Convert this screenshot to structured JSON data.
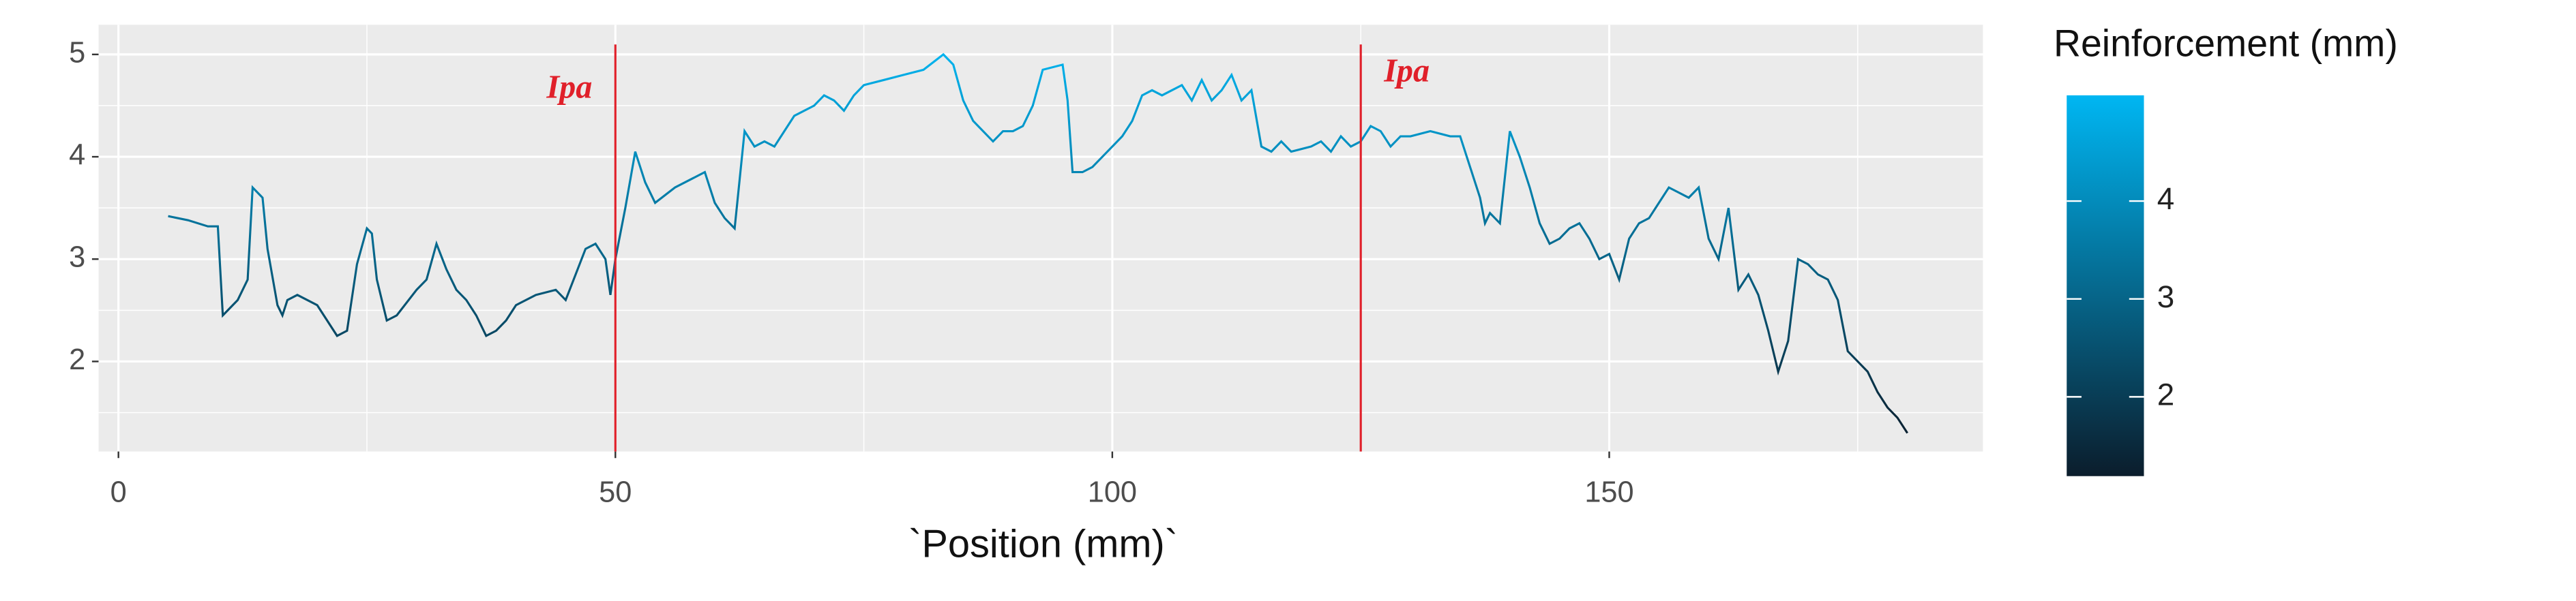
{
  "chart_data": {
    "type": "line",
    "x_label": "`Position (mm)`",
    "x": [
      5,
      7,
      9,
      10,
      10.5,
      11,
      12,
      13,
      13.5,
      14.5,
      15,
      16,
      16.5,
      17,
      18,
      20,
      21,
      22,
      23,
      24,
      25,
      25.5,
      26,
      27,
      28,
      30,
      31,
      32,
      33,
      34,
      35,
      36,
      37,
      38,
      39,
      40,
      42,
      44,
      45,
      46,
      47,
      48,
      49,
      49.5,
      50,
      51,
      52,
      53,
      54,
      56,
      58,
      59,
      60,
      61,
      62,
      63,
      64,
      65,
      66,
      67,
      68,
      70,
      71,
      72,
      73,
      74,
      75,
      77,
      79,
      81,
      83,
      84,
      85,
      86,
      88,
      89,
      90,
      91,
      92,
      93,
      95,
      95.5,
      96,
      97,
      98,
      99,
      100,
      101,
      102,
      103,
      104,
      105,
      106,
      107,
      108,
      109,
      110,
      111,
      112,
      113,
      114,
      115,
      116,
      117,
      118,
      120,
      121,
      122,
      123,
      124,
      125,
      126,
      127,
      128,
      129,
      130,
      132,
      134,
      135,
      136,
      137,
      137.5,
      138,
      139,
      140,
      141,
      142,
      143,
      144,
      145,
      146,
      147,
      148,
      149,
      150,
      151,
      152,
      153,
      154,
      155,
      156,
      157,
      158,
      159,
      160,
      161,
      162,
      163,
      164,
      165,
      166,
      167,
      168,
      169,
      170,
      171,
      172,
      173,
      174,
      175,
      176,
      177,
      178,
      179,
      180
    ],
    "series": [
      {
        "values": [
          3.42,
          3.38,
          3.32,
          3.32,
          2.45,
          2.5,
          2.6,
          2.8,
          3.7,
          3.6,
          3.1,
          2.55,
          2.45,
          2.6,
          2.65,
          2.55,
          2.4,
          2.25,
          2.3,
          2.95,
          3.3,
          3.25,
          2.8,
          2.4,
          2.45,
          2.7,
          2.8,
          3.15,
          2.9,
          2.7,
          2.6,
          2.45,
          2.25,
          2.3,
          2.4,
          2.55,
          2.65,
          2.7,
          2.6,
          2.85,
          3.1,
          3.15,
          3.0,
          2.65,
          3.0,
          3.5,
          4.05,
          3.75,
          3.55,
          3.7,
          3.8,
          3.85,
          3.55,
          3.4,
          3.3,
          4.25,
          4.1,
          4.15,
          4.1,
          4.25,
          4.4,
          4.5,
          4.6,
          4.55,
          4.45,
          4.6,
          4.7,
          4.75,
          4.8,
          4.85,
          5.0,
          4.9,
          4.55,
          4.35,
          4.15,
          4.25,
          4.25,
          4.3,
          4.5,
          4.85,
          4.9,
          4.55,
          3.85,
          3.85,
          3.9,
          4.0,
          4.1,
          4.2,
          4.35,
          4.6,
          4.65,
          4.6,
          4.65,
          4.7,
          4.55,
          4.75,
          4.55,
          4.65,
          4.8,
          4.55,
          4.65,
          4.1,
          4.05,
          4.15,
          4.05,
          4.1,
          4.15,
          4.05,
          4.2,
          4.1,
          4.15,
          4.3,
          4.25,
          4.1,
          4.2,
          4.2,
          4.25,
          4.2,
          4.2,
          3.9,
          3.6,
          3.35,
          3.45,
          3.35,
          4.25,
          4.0,
          3.7,
          3.35,
          3.15,
          3.2,
          3.3,
          3.35,
          3.2,
          3.0,
          3.05,
          2.8,
          3.2,
          3.35,
          3.4,
          3.55,
          3.7,
          3.65,
          3.6,
          3.7,
          3.2,
          3.0,
          3.5,
          2.7,
          2.85,
          2.65,
          2.3,
          1.9,
          2.2,
          3.0,
          2.95,
          2.85,
          2.8,
          2.6,
          2.1,
          2.0,
          1.9,
          1.7,
          1.55,
          1.45,
          1.3
        ]
      }
    ],
    "xlim": [
      -2,
      187.6
    ],
    "ylim": [
      1.12,
      5.29
    ],
    "xticks": [
      0,
      50,
      100,
      150
    ],
    "yticks": [
      2,
      3,
      4,
      5
    ],
    "minor_xticks": [
      25,
      75,
      125,
      175
    ],
    "minor_yticks": [
      1.5,
      2.5,
      3.5,
      4.5
    ],
    "grid": true,
    "vlines": [
      {
        "x": 50,
        "label": "Ipa"
      },
      {
        "x": 125,
        "label": "Ipa"
      }
    ],
    "vline_color": "#e0202a",
    "colorbar": {
      "title": "Reinforcement (mm)",
      "lim": [
        1.19,
        5.08
      ],
      "ticks": [
        2,
        3,
        4
      ],
      "colors": [
        "#0b1d2c",
        "#00b6f2"
      ]
    }
  }
}
